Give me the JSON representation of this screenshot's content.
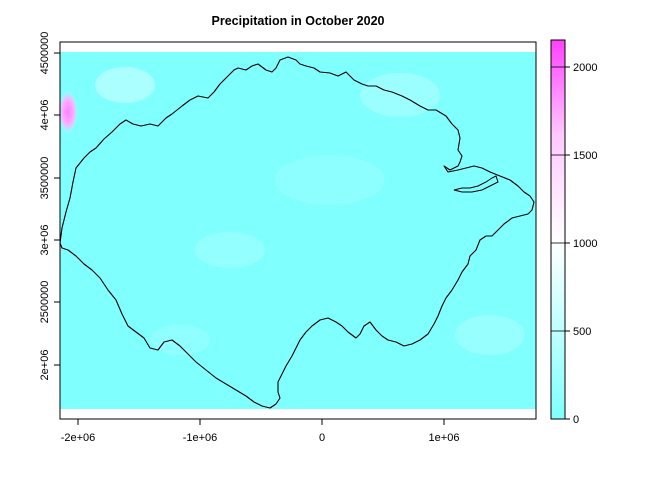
{
  "title": "Precipitation in October 2020",
  "x_axis": {
    "ticks": [
      {
        "value": -2000000,
        "label": "-2e+06"
      },
      {
        "value": -1000000,
        "label": "-1e+06"
      },
      {
        "value": 0,
        "label": "0"
      },
      {
        "value": 1000000,
        "label": "1e+06"
      }
    ],
    "range": [
      -2150000,
      1750000
    ]
  },
  "y_axis": {
    "ticks": [
      {
        "value": 2000000,
        "label": "2e+06"
      },
      {
        "value": 2500000,
        "label": "2500000"
      },
      {
        "value": 3000000,
        "label": "3e+06"
      },
      {
        "value": 3500000,
        "label": "3500000"
      },
      {
        "value": 4000000,
        "label": "4e+06"
      },
      {
        "value": 4500000,
        "label": "4500000"
      }
    ],
    "range": [
      1770000,
      4630000
    ]
  },
  "legend": {
    "min": 0,
    "max": 2150,
    "ticks": [
      {
        "value": 0,
        "label": "0"
      },
      {
        "value": 500,
        "label": "500"
      },
      {
        "value": 1000,
        "label": "1000"
      },
      {
        "value": 1500,
        "label": "1500"
      },
      {
        "value": 2000,
        "label": "2000"
      }
    ],
    "colors": [
      "#80ffff",
      "#ffffff",
      "#ff80ff",
      "#ff40ff"
    ]
  },
  "colors": {
    "raster_base": "#80ffff",
    "raster_light": "#d6ffff",
    "high_precip": "#ff80ff",
    "outline": "#000000"
  }
}
